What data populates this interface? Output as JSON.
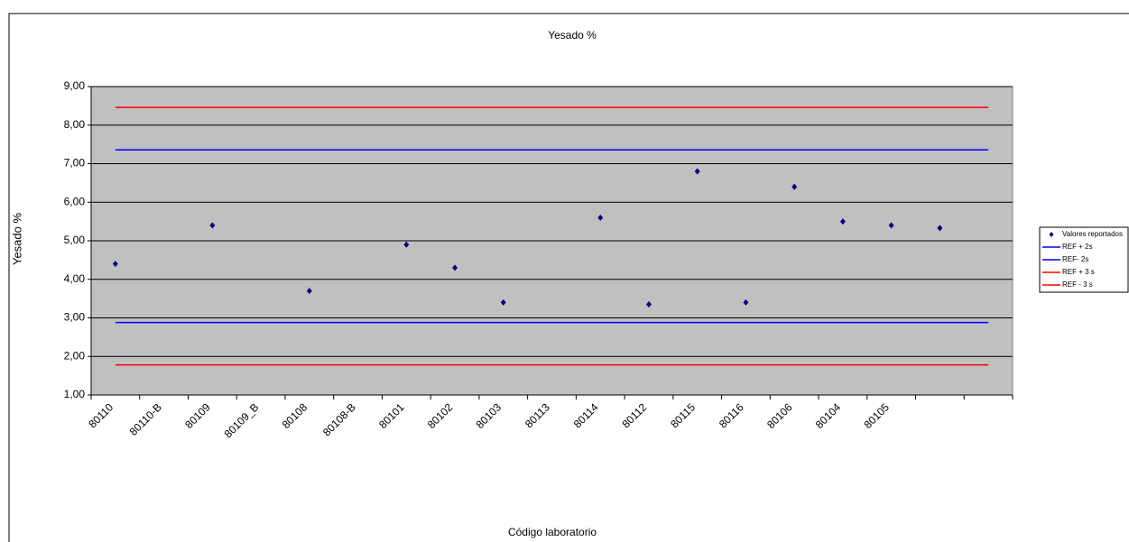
{
  "chart_data": {
    "type": "line",
    "title": "Yesado %",
    "y_label": "Yesado %",
    "x_label": "Código laboratorio",
    "categories": [
      "80110",
      "80110-B",
      "80109",
      "80109_B",
      "80108",
      "80108-B",
      "80101",
      "80102",
      "80103",
      "80113",
      "80114",
      "80112",
      "80115",
      "80116",
      "80106",
      "80104",
      "80105",
      null,
      null
    ],
    "series": [
      {
        "name": "Valores reportados",
        "color": "#000080",
        "style": "marker",
        "values": [
          4.4,
          null,
          5.4,
          null,
          3.7,
          null,
          4.9,
          4.3,
          3.4,
          null,
          5.6,
          3.35,
          6.8,
          3.4,
          6.4,
          5.5,
          5.4,
          5.33,
          null
        ]
      },
      {
        "name": "REF + 2s",
        "color": "#0000ff",
        "style": "line",
        "values": [
          7.36,
          7.36,
          7.36,
          7.36,
          7.36,
          7.36,
          7.36,
          7.36,
          7.36,
          7.36,
          7.36,
          7.36,
          7.36,
          7.36,
          7.36,
          7.36,
          7.36,
          7.36,
          7.36
        ]
      },
      {
        "name": "REF- 2s",
        "color": "#0000ff",
        "style": "line",
        "values": [
          2.88,
          2.88,
          2.88,
          2.88,
          2.88,
          2.88,
          2.88,
          2.88,
          2.88,
          2.88,
          2.88,
          2.88,
          2.88,
          2.88,
          2.88,
          2.88,
          2.88,
          2.88,
          2.88
        ]
      },
      {
        "name": "REF + 3 s",
        "color": "#ff0000",
        "style": "line",
        "values": [
          8.46,
          8.46,
          8.46,
          8.46,
          8.46,
          8.46,
          8.46,
          8.46,
          8.46,
          8.46,
          8.46,
          8.46,
          8.46,
          8.46,
          8.46,
          8.46,
          8.46,
          8.46,
          8.46
        ]
      },
      {
        "name": "REF - 3 s",
        "color": "#ff0000",
        "style": "line",
        "values": [
          1.78,
          1.78,
          1.78,
          1.78,
          1.78,
          1.78,
          1.78,
          1.78,
          1.78,
          1.78,
          1.78,
          1.78,
          1.78,
          1.78,
          1.78,
          1.78,
          1.78,
          1.78,
          1.78
        ]
      }
    ],
    "ylim": [
      1,
      9
    ],
    "yticks": [
      {
        "value": 1,
        "label": "1,00"
      },
      {
        "value": 2,
        "label": "2,00"
      },
      {
        "value": 3,
        "label": "3,00"
      },
      {
        "value": 4,
        "label": "4,00"
      },
      {
        "value": 5,
        "label": "5,00"
      },
      {
        "value": 6,
        "label": "6,00"
      },
      {
        "value": 7,
        "label": "7,00"
      },
      {
        "value": 8,
        "label": "8,00"
      },
      {
        "value": 9,
        "label": "9,00"
      }
    ],
    "grid": true,
    "legend": "right"
  }
}
